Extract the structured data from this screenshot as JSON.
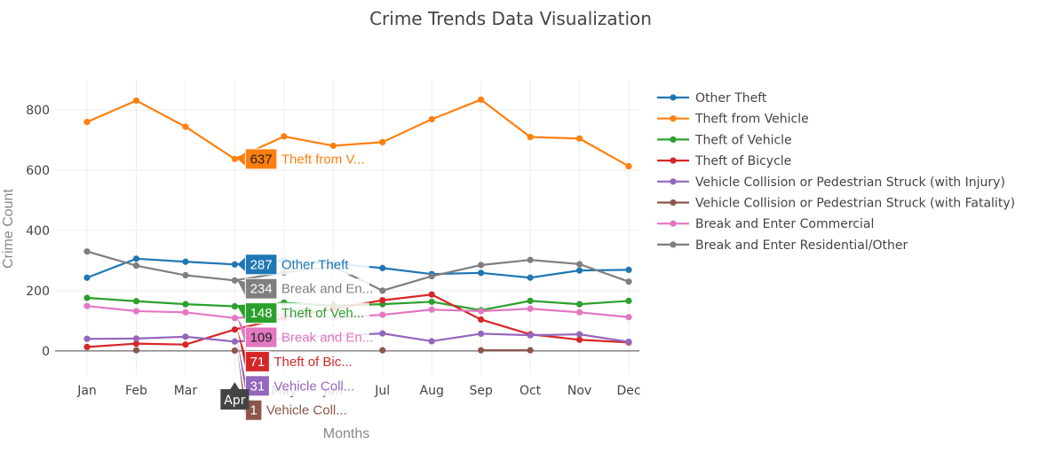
{
  "chart_data": {
    "type": "line",
    "title": "Crime Trends Data Visualization",
    "xlabel": "Months",
    "ylabel": "Crime Count",
    "categories": [
      "Jan",
      "Feb",
      "Mar",
      "Apr",
      "May",
      "Jun",
      "Jul",
      "Aug",
      "Sep",
      "Oct",
      "Nov",
      "Dec"
    ],
    "yticks": [
      0,
      200,
      400,
      600,
      800
    ],
    "ylim": [
      -80,
      900
    ],
    "grid": true,
    "legend_position": "right",
    "hover_month": "Apr",
    "series": [
      {
        "name": "Other Theft",
        "short": "Other Theft",
        "color": "#1f77b4",
        "values": [
          243,
          306,
          296,
          287,
          300,
          290,
          275,
          255,
          259,
          243,
          267,
          269
        ]
      },
      {
        "name": "Theft from Vehicle",
        "short": "Theft from V...",
        "color": "#ff7f0e",
        "values": [
          760,
          831,
          744,
          637,
          712,
          681,
          693,
          769,
          834,
          710,
          705,
          613
        ]
      },
      {
        "name": "Theft of Vehicle",
        "short": "Theft of Veh...",
        "color": "#2ca02c",
        "values": [
          176,
          165,
          155,
          148,
          160,
          150,
          155,
          163,
          135,
          166,
          155,
          166
        ]
      },
      {
        "name": "Theft of Bicycle",
        "short": "Theft of Bic...",
        "color": "#d62728",
        "values": [
          13,
          24,
          21,
          71,
          110,
          140,
          168,
          187,
          104,
          55,
          37,
          28
        ]
      },
      {
        "name": "Vehicle Collision or Pedestrian Struck (with Injury)",
        "short": "Vehicle Coll...",
        "color": "#9467bd",
        "values": [
          40,
          41,
          47,
          31,
          40,
          50,
          58,
          32,
          57,
          52,
          55,
          30
        ]
      },
      {
        "name": "Vehicle Collision or Pedestrian Struck (with Fatality)",
        "short": "Vehicle Coll...",
        "color": "#8c564b",
        "values": [
          null,
          2,
          null,
          1,
          null,
          null,
          2,
          null,
          2,
          2,
          null,
          null
        ]
      },
      {
        "name": "Break and Enter Commercial",
        "short": "Break and En...",
        "color": "#e377c2",
        "values": [
          149,
          132,
          128,
          109,
          120,
          110,
          120,
          137,
          132,
          140,
          128,
          112
        ]
      },
      {
        "name": "Break and Enter Residential/Other",
        "short": "Break and En...",
        "color": "#7f7f7f",
        "values": [
          330,
          283,
          251,
          234,
          260,
          280,
          200,
          248,
          285,
          302,
          288,
          230
        ]
      }
    ]
  }
}
